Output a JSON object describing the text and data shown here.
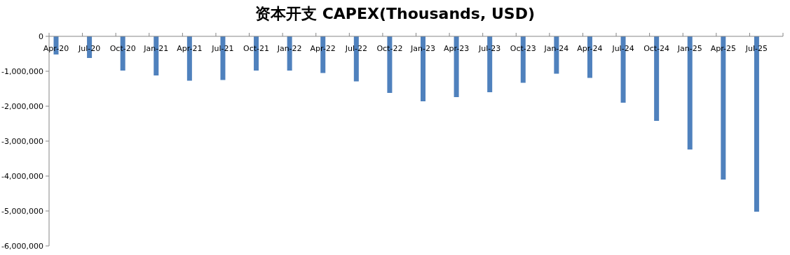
{
  "chart_data": {
    "type": "bar",
    "title": "资本开支 CAPEX(Thousands, USD)",
    "categories": [
      "Apr-20",
      "Jul-20",
      "Oct-20",
      "Jan-21",
      "Apr-21",
      "Jul-21",
      "Oct-21",
      "Jan-22",
      "Apr-22",
      "Jul-22",
      "Oct-22",
      "Jan-23",
      "Apr-23",
      "Jul-23",
      "Oct-23",
      "Jan-24",
      "Apr-24",
      "Jul-24",
      "Oct-24",
      "Jan-25",
      "Apr-25",
      "Jul-25"
    ],
    "values": [
      -520000,
      -620000,
      -980000,
      -1120000,
      -1270000,
      -1250000,
      -980000,
      -980000,
      -1050000,
      -1290000,
      -1620000,
      -1860000,
      -1740000,
      -1600000,
      -1330000,
      -1070000,
      -1190000,
      -1900000,
      -2420000,
      -3240000,
      -4100000,
      -5020000
    ],
    "color": "#4f81bd",
    "ylim": [
      -6000000,
      0
    ],
    "yticks": [
      0,
      {
        "value": -1000000,
        "label": "-1,000,000"
      },
      {
        "value": -2000000,
        "label": "-2,000,000"
      },
      {
        "value": -3000000,
        "label": "-3,000,000"
      },
      {
        "value": -4000000,
        "label": "-4,000,000"
      },
      {
        "value": -5000000,
        "label": "-5,000,000"
      },
      {
        "value": -6000000,
        "label": "-6,000,000"
      }
    ],
    "grid": false
  }
}
